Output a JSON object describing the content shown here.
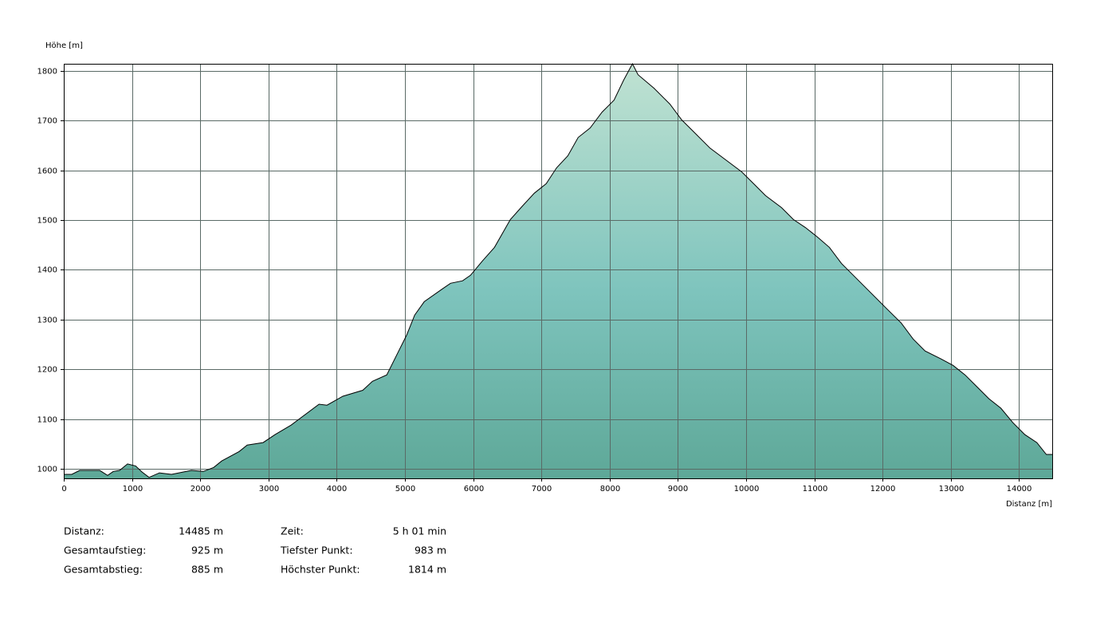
{
  "chart_data": {
    "type": "area",
    "y_label": "Höhe [m]",
    "x_label": "Distanz [m]",
    "x": [
      0,
      117,
      234,
      526,
      643,
      725,
      818,
      935,
      1052,
      1145,
      1250,
      1402,
      1578,
      1870,
      2045,
      2197,
      2314,
      2571,
      2688,
      2922,
      3097,
      3331,
      3506,
      3740,
      3857,
      4090,
      4382,
      4523,
      4733,
      4909,
      5025,
      5142,
      5282,
      5551,
      5668,
      5844,
      5960,
      6136,
      6311,
      6544,
      6720,
      6895,
      7070,
      7222,
      7386,
      7538,
      7713,
      7888,
      8064,
      8204,
      8333,
      8415,
      8649,
      8882,
      9057,
      9233,
      9467,
      9700,
      9934,
      10109,
      10284,
      10518,
      10693,
      10869,
      11044,
      11220,
      11395,
      11629,
      11804,
      12038,
      12272,
      12447,
      12622,
      12856,
      13032,
      13207,
      13382,
      13558,
      13733,
      13908,
      14083,
      14259,
      14399,
      14485
    ],
    "values": [
      989,
      989,
      997,
      997,
      987,
      995,
      997,
      1010,
      1006,
      994,
      983,
      992,
      989,
      997,
      995,
      1003,
      1016,
      1035,
      1048,
      1053,
      1069,
      1088,
      1106,
      1130,
      1128,
      1146,
      1158,
      1176,
      1189,
      1237,
      1269,
      1309,
      1336,
      1362,
      1373,
      1378,
      1389,
      1418,
      1445,
      1501,
      1528,
      1554,
      1573,
      1605,
      1629,
      1666,
      1685,
      1717,
      1741,
      1781,
      1814,
      1792,
      1765,
      1733,
      1701,
      1677,
      1645,
      1621,
      1597,
      1573,
      1549,
      1525,
      1501,
      1485,
      1466,
      1445,
      1413,
      1381,
      1357,
      1325,
      1293,
      1261,
      1237,
      1221,
      1208,
      1189,
      1165,
      1141,
      1122,
      1093,
      1069,
      1053,
      1029,
      1029
    ],
    "xlim": [
      0,
      14485
    ],
    "ylim": [
      981,
      1814
    ],
    "xticks": [
      0,
      1000,
      2000,
      3000,
      4000,
      5000,
      6000,
      7000,
      8000,
      9000,
      10000,
      11000,
      12000,
      13000,
      14000
    ],
    "yticks": [
      1000,
      1100,
      1200,
      1300,
      1400,
      1500,
      1600,
      1700,
      1800
    ],
    "grid": true
  },
  "stats": [
    [
      "Distanz:",
      "14485 m",
      "Zeit:",
      "5 h 01 min"
    ],
    [
      "Gesamtaufstieg:",
      "925 m",
      "Tiefster Punkt:",
      "983 m"
    ],
    [
      "Gesamtabstieg:",
      "885 m",
      "Höchster Punkt:",
      "1814 m"
    ]
  ]
}
